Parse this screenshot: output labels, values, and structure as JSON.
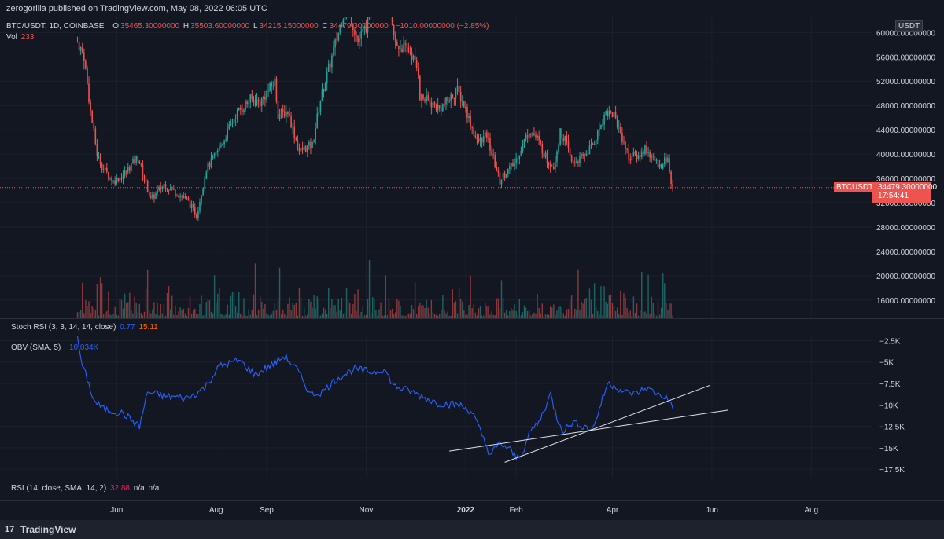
{
  "header": {
    "publisher": "zerogorilla published on TradingView.com, May 08, 2022 06:05 UTC"
  },
  "price_legend": {
    "symbol": "BTC/USDT, 1D, COINBASE",
    "o_label": "O",
    "o_value": "35465.30000000",
    "h_label": "H",
    "h_value": "35503.60000000",
    "l_label": "L",
    "l_value": "34215.15000000",
    "c_label": "C",
    "c_value": "34479.30000000",
    "change": "−1010.00000000 (−2.85%)",
    "vol_label": "Vol",
    "vol_value": "233"
  },
  "price_tag": {
    "symbol": "BTCUSDT",
    "price": "34479.30000000",
    "countdown": "17:54:41"
  },
  "currency_badge": "USDT",
  "stoch_legend": {
    "label": "Stoch RSI (3, 3, 14, 14, close)",
    "k": "0.77",
    "d": "15.11"
  },
  "obv_legend": {
    "label": "OBV (SMA, 5)",
    "value": "−10.034K"
  },
  "rsi_legend": {
    "label": "RSI (14, close, SMA, 14, 2)",
    "value": "32.88",
    "na1": "n/a",
    "na2": "n/a"
  },
  "footer": {
    "brand": "TradingView",
    "logo": "17"
  },
  "colors": {
    "up": "#26a69a",
    "down": "#ef5350",
    "obv": "#2962ff",
    "stoch_k": "#2962ff",
    "stoch_d": "#ff6d00",
    "rsi": "#e91e63",
    "bg": "#131722",
    "grid": "#1c202b"
  },
  "chart_data": [
    {
      "type": "candlestick",
      "title": "BTC/USDT, 1D, COINBASE",
      "x_ticks": [
        "Jun",
        "Aug",
        "Sep",
        "Nov",
        "2022",
        "Feb",
        "Apr",
        "Jun",
        "Aug"
      ],
      "y_ticks": [
        "60000.00000000",
        "56000.00000000",
        "52000.00000000",
        "48000.00000000",
        "44000.00000000",
        "40000.00000000",
        "36000.00000000",
        "32000.00000000",
        "28000.00000000",
        "24000.00000000",
        "20000.00000000",
        "16000.00000000"
      ],
      "ylim": [
        13000,
        62500
      ],
      "grid": true,
      "last_price": 34479.3,
      "close_path_anchors": [
        [
          "2021-05-08",
          58500
        ],
        [
          "2021-05-12",
          56000
        ],
        [
          "2021-05-16",
          47000
        ],
        [
          "2021-05-20",
          40000
        ],
        [
          "2021-05-24",
          37500
        ],
        [
          "2021-05-30",
          35500
        ],
        [
          "2021-06-05",
          36500
        ],
        [
          "2021-06-14",
          39500
        ],
        [
          "2021-06-22",
          32500
        ],
        [
          "2021-06-30",
          35000
        ],
        [
          "2021-07-08",
          33500
        ],
        [
          "2021-07-14",
          32500
        ],
        [
          "2021-07-20",
          29900
        ],
        [
          "2021-07-26",
          37500
        ],
        [
          "2021-08-01",
          40000
        ],
        [
          "2021-08-06",
          42500
        ],
        [
          "2021-08-13",
          46500
        ],
        [
          "2021-08-22",
          49000
        ],
        [
          "2021-08-28",
          48500
        ],
        [
          "2021-09-06",
          52000
        ],
        [
          "2021-09-08",
          46500
        ],
        [
          "2021-09-14",
          47000
        ],
        [
          "2021-09-21",
          40500
        ],
        [
          "2021-09-29",
          41500
        ],
        [
          "2021-10-04",
          49000
        ],
        [
          "2021-10-10",
          55000
        ],
        [
          "2021-10-16",
          61000
        ],
        [
          "2021-10-20",
          65000
        ],
        [
          "2021-10-27",
          58500
        ],
        [
          "2021-11-01",
          61000
        ],
        [
          "2021-11-09",
          67500
        ],
        [
          "2021-11-14",
          64500
        ],
        [
          "2021-11-19",
          58000
        ],
        [
          "2021-11-28",
          57000
        ],
        [
          "2021-12-03",
          53500
        ],
        [
          "2021-12-04",
          49500
        ],
        [
          "2021-12-10",
          48500
        ],
        [
          "2021-12-16",
          47500
        ],
        [
          "2021-12-22",
          49000
        ],
        [
          "2021-12-27",
          50500
        ],
        [
          "2022-01-01",
          47500
        ],
        [
          "2022-01-08",
          42000
        ],
        [
          "2022-01-14",
          43000
        ],
        [
          "2022-01-22",
          35500
        ],
        [
          "2022-01-24",
          36500
        ],
        [
          "2022-01-31",
          38500
        ],
        [
          "2022-02-09",
          44000
        ],
        [
          "2022-02-14",
          42500
        ],
        [
          "2022-02-20",
          39000
        ],
        [
          "2022-02-24",
          38000
        ],
        [
          "2022-02-28",
          43500
        ],
        [
          "2022-03-03",
          42500
        ],
        [
          "2022-03-07",
          38500
        ],
        [
          "2022-03-14",
          39500
        ],
        [
          "2022-03-20",
          41500
        ],
        [
          "2022-03-28",
          47000
        ],
        [
          "2022-04-02",
          46500
        ],
        [
          "2022-04-06",
          43500
        ],
        [
          "2022-04-11",
          39500
        ],
        [
          "2022-04-18",
          39800
        ],
        [
          "2022-04-21",
          41000
        ],
        [
          "2022-04-25",
          39500
        ],
        [
          "2022-04-30",
          38000
        ],
        [
          "2022-05-05",
          39500
        ],
        [
          "2022-05-06",
          36500
        ],
        [
          "2022-05-08",
          34479
        ]
      ]
    },
    {
      "type": "line",
      "title": "OBV (SMA, 5)",
      "y_ticks": [
        "−2.5K",
        "−5K",
        "−7.5K",
        "−10K",
        "−12.5K",
        "−15K",
        "−17.5K"
      ],
      "ylim": [
        -18500,
        -2000
      ],
      "path_anchors": [
        [
          "2021-05-08",
          -2400
        ],
        [
          "2021-05-11",
          -5500
        ],
        [
          "2021-05-14",
          -7000
        ],
        [
          "2021-05-18",
          -9500
        ],
        [
          "2021-05-24",
          -10500
        ],
        [
          "2021-06-05",
          -11000
        ],
        [
          "2021-06-15",
          -12500
        ],
        [
          "2021-06-20",
          -8500
        ],
        [
          "2021-07-01",
          -9000
        ],
        [
          "2021-07-15",
          -9200
        ],
        [
          "2021-07-25",
          -8000
        ],
        [
          "2021-08-03",
          -5500
        ],
        [
          "2021-08-15",
          -4800
        ],
        [
          "2021-08-25",
          -6500
        ],
        [
          "2021-09-05",
          -5200
        ],
        [
          "2021-09-12",
          -4300
        ],
        [
          "2021-09-20",
          -6000
        ],
        [
          "2021-09-28",
          -8800
        ],
        [
          "2021-10-05",
          -8500
        ],
        [
          "2021-10-15",
          -6800
        ],
        [
          "2021-10-25",
          -5800
        ],
        [
          "2021-11-05",
          -6200
        ],
        [
          "2021-11-12",
          -5800
        ],
        [
          "2021-11-18",
          -7800
        ],
        [
          "2021-11-28",
          -8400
        ],
        [
          "2021-12-05",
          -9000
        ],
        [
          "2021-12-15",
          -9800
        ],
        [
          "2021-12-28",
          -10000
        ],
        [
          "2022-01-05",
          -10800
        ],
        [
          "2022-01-12",
          -14000
        ],
        [
          "2022-01-16",
          -15800
        ],
        [
          "2022-01-22",
          -14500
        ],
        [
          "2022-01-28",
          -15200
        ],
        [
          "2022-02-01",
          -16200
        ],
        [
          "2022-02-05",
          -15500
        ],
        [
          "2022-02-10",
          -13000
        ],
        [
          "2022-02-15",
          -12000
        ],
        [
          "2022-02-22",
          -8800
        ],
        [
          "2022-02-26",
          -11500
        ],
        [
          "2022-03-02",
          -13000
        ],
        [
          "2022-03-08",
          -12000
        ],
        [
          "2022-03-14",
          -12500
        ],
        [
          "2022-03-20",
          -12800
        ],
        [
          "2022-03-24",
          -10500
        ],
        [
          "2022-03-29",
          -7500
        ],
        [
          "2022-04-03",
          -7800
        ],
        [
          "2022-04-08",
          -8500
        ],
        [
          "2022-04-15",
          -8700
        ],
        [
          "2022-04-22",
          -8000
        ],
        [
          "2022-04-28",
          -8700
        ],
        [
          "2022-05-03",
          -9000
        ],
        [
          "2022-05-08",
          -10034
        ]
      ],
      "trendlines": [
        {
          "x1": "2021-12-22",
          "y1": -15400,
          "x2": "2022-06-11",
          "y2": -10600
        },
        {
          "x1": "2022-01-25",
          "y1": -16700,
          "x2": "2022-05-31",
          "y2": -7700
        }
      ]
    }
  ]
}
